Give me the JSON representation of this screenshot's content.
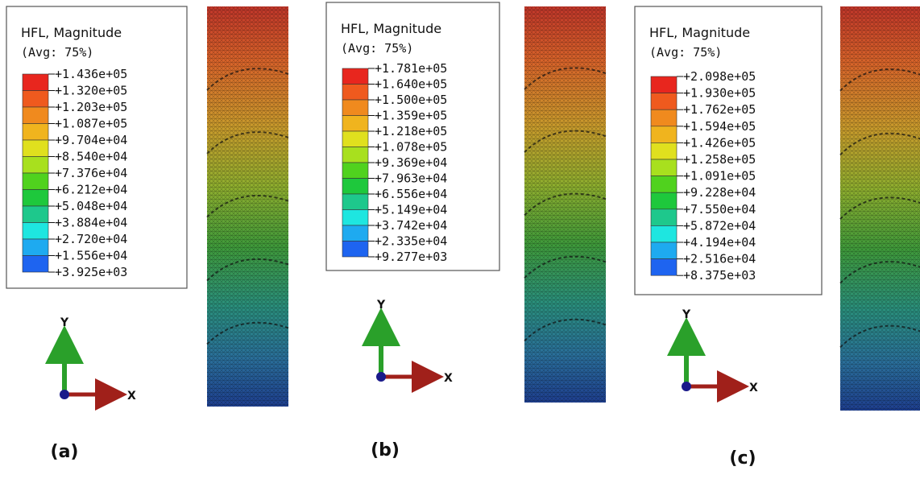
{
  "panels": [
    {
      "legend": {
        "title": "HFL, Magnitude",
        "subtitle": "(Avg: 75%)",
        "levels": [
          "+1.436e+05",
          "+1.320e+05",
          "+1.203e+05",
          "+1.087e+05",
          "+9.704e+04",
          "+8.540e+04",
          "+7.376e+04",
          "+6.212e+04",
          "+5.048e+04",
          "+3.884e+04",
          "+2.720e+04",
          "+1.556e+04",
          "+3.925e+03"
        ]
      },
      "axes": {
        "y": "Y",
        "x": "X"
      },
      "caption": "(a)"
    },
    {
      "legend": {
        "title": "HFL, Magnitude",
        "subtitle": "(Avg: 75%)",
        "levels": [
          "+1.781e+05",
          "+1.640e+05",
          "+1.500e+05",
          "+1.359e+05",
          "+1.218e+05",
          "+1.078e+05",
          "+9.369e+04",
          "+7.963e+04",
          "+6.556e+04",
          "+5.149e+04",
          "+3.742e+04",
          "+2.335e+04",
          "+9.277e+03"
        ]
      },
      "axes": {
        "y": "Y",
        "x": "X"
      },
      "caption": "(b)"
    },
    {
      "legend": {
        "title": "HFL, Magnitude",
        "subtitle": "(Avg: 75%)",
        "levels": [
          "+2.098e+05",
          "+1.930e+05",
          "+1.762e+05",
          "+1.594e+05",
          "+1.426e+05",
          "+1.258e+05",
          "+1.091e+05",
          "+9.228e+04",
          "+7.550e+04",
          "+5.872e+04",
          "+4.194e+04",
          "+2.516e+04",
          "+8.375e+03"
        ]
      },
      "axes": {
        "y": "Y",
        "x": "X"
      },
      "caption": "(c)"
    }
  ]
}
